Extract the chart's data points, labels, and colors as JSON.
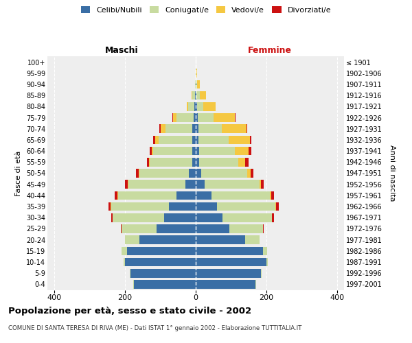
{
  "age_groups": [
    "0-4",
    "5-9",
    "10-14",
    "15-19",
    "20-24",
    "25-29",
    "30-34",
    "35-39",
    "40-44",
    "45-49",
    "50-54",
    "55-59",
    "60-64",
    "65-69",
    "70-74",
    "75-79",
    "80-84",
    "85-89",
    "90-94",
    "95-99",
    "100+"
  ],
  "birth_years": [
    "1997-2001",
    "1992-1996",
    "1987-1991",
    "1982-1986",
    "1977-1981",
    "1972-1976",
    "1967-1971",
    "1962-1966",
    "1957-1961",
    "1952-1956",
    "1947-1951",
    "1942-1946",
    "1937-1941",
    "1932-1936",
    "1927-1931",
    "1922-1926",
    "1917-1921",
    "1912-1916",
    "1907-1911",
    "1902-1906",
    "≤ 1901"
  ],
  "males": {
    "celibi": [
      175,
      185,
      200,
      195,
      160,
      110,
      90,
      75,
      55,
      30,
      20,
      10,
      10,
      10,
      10,
      5,
      3,
      2,
      0,
      0,
      0
    ],
    "coniugati": [
      1,
      2,
      5,
      15,
      40,
      100,
      145,
      165,
      165,
      160,
      140,
      120,
      110,
      95,
      75,
      50,
      18,
      8,
      2,
      0,
      0
    ],
    "vedovi": [
      0,
      0,
      0,
      0,
      0,
      0,
      1,
      1,
      1,
      2,
      2,
      3,
      5,
      10,
      15,
      10,
      5,
      2,
      0,
      0,
      0
    ],
    "divorziati": [
      0,
      0,
      0,
      0,
      1,
      2,
      3,
      5,
      8,
      8,
      8,
      5,
      5,
      5,
      3,
      2,
      0,
      0,
      0,
      0,
      0
    ]
  },
  "females": {
    "nubili": [
      170,
      185,
      200,
      190,
      140,
      95,
      75,
      60,
      45,
      25,
      15,
      10,
      10,
      8,
      8,
      5,
      3,
      2,
      1,
      0,
      0
    ],
    "coniugate": [
      1,
      1,
      4,
      12,
      40,
      95,
      140,
      165,
      165,
      155,
      130,
      110,
      100,
      85,
      65,
      45,
      18,
      10,
      3,
      1,
      0
    ],
    "vedove": [
      0,
      0,
      0,
      0,
      0,
      1,
      1,
      2,
      3,
      5,
      10,
      20,
      40,
      60,
      70,
      60,
      35,
      18,
      8,
      2,
      0
    ],
    "divorziate": [
      0,
      0,
      0,
      0,
      1,
      2,
      5,
      8,
      8,
      8,
      8,
      10,
      8,
      5,
      3,
      2,
      1,
      0,
      0,
      0,
      0
    ]
  },
  "colors": {
    "celibi": "#3a6ea5",
    "coniugati": "#c8dba0",
    "vedovi": "#f5c842",
    "divorziati": "#cc1111"
  },
  "xlim": 420,
  "xticks": [
    -400,
    -200,
    0,
    200,
    400
  ],
  "xtick_labels": [
    "400",
    "200",
    "0",
    "200",
    "400"
  ],
  "title": "Popolazione per età, sesso e stato civile - 2002",
  "subtitle": "COMUNE DI SANTA TERESA DI RIVA (ME) - Dati ISTAT 1° gennaio 2002 - Elaborazione TUTTITALIA.IT",
  "ylabel_left": "Fasce di età",
  "ylabel_right": "Anni di nascita",
  "label_maschi": "Maschi",
  "label_femmine": "Femmine",
  "bg_color": "#ffffff",
  "plot_bg": "#eeeeee"
}
